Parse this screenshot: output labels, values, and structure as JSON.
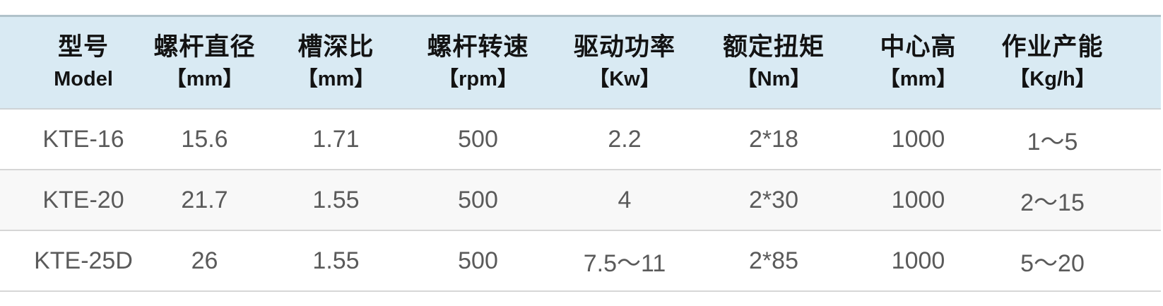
{
  "colors": {
    "header_bg": "#d9eaf3",
    "header_top_border": "#b0c2ca",
    "header_bottom_border": "#ced3d6",
    "row_border": "#d6d6d6",
    "alt_row_bg": "#f8f8f8",
    "header_text": "#131313",
    "data_text": "#5a5a5a",
    "page_bg": "#ffffff"
  },
  "table": {
    "columns": [
      {
        "title": "型号",
        "subtitle": "Model"
      },
      {
        "title": "螺杆直径",
        "subtitle": "【mm】"
      },
      {
        "title": "槽深比",
        "subtitle": "【mm】"
      },
      {
        "title": "螺杆转速",
        "subtitle": "【rpm】"
      },
      {
        "title": "驱动功率",
        "subtitle": "【Kw】"
      },
      {
        "title": "额定扭矩",
        "subtitle": "【Nm】"
      },
      {
        "title": "中心高",
        "subtitle": "【mm】"
      },
      {
        "title": "作业产能",
        "subtitle": "【Kg/h】"
      }
    ],
    "rows": [
      [
        "KTE-16",
        "15.6",
        "1.71",
        "500",
        "2.2",
        "2*18",
        "1000",
        "1～5"
      ],
      [
        "KTE-20",
        "21.7",
        "1.55",
        "500",
        "4",
        "2*30",
        "1000",
        "2～15"
      ],
      [
        "KTE-25D",
        "26",
        "1.55",
        "500",
        "7.5～11",
        "2*85",
        "1000",
        "5～20"
      ]
    ]
  }
}
